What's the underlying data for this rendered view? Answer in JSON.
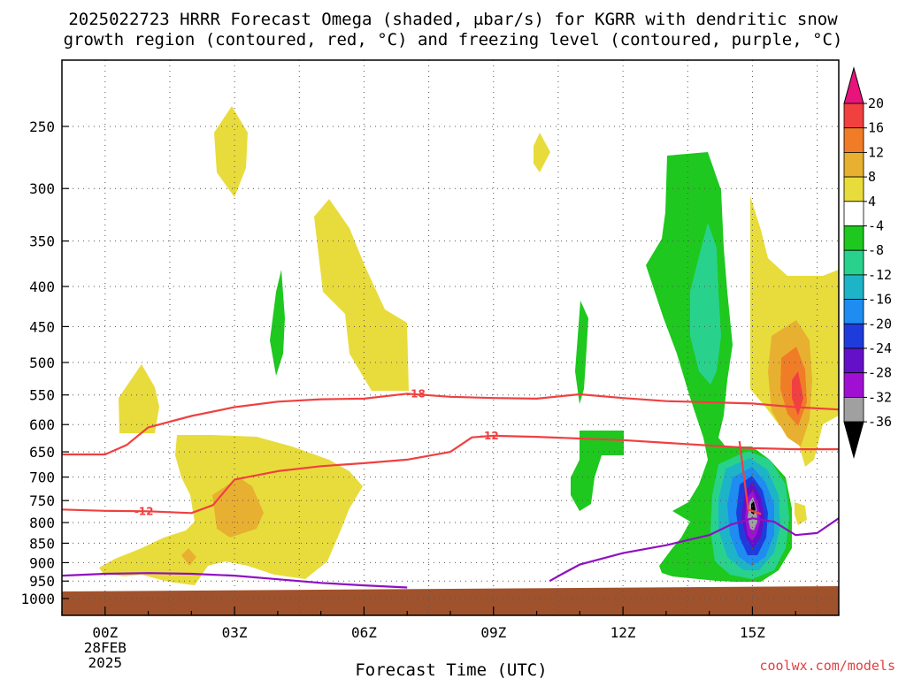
{
  "title": {
    "line1": "2025022723 HRRR Forecast Omega (shaded, μbar/s) for KGRR with dendritic snow",
    "line2": "growth region (contoured, red, °C) and freezing level (contoured, purple, °C)"
  },
  "credit": "coolwx.com/models",
  "colors": {
    "ground": "#a0522d",
    "dgz_contour": "#f04040",
    "freezing_contour": "#9010c0"
  },
  "chart_data": {
    "type": "time-height contour",
    "xlabel": "Forecast Time (UTC)",
    "ylabel": "",
    "x_ticks": [
      "00Z",
      "03Z",
      "06Z",
      "09Z",
      "12Z",
      "15Z"
    ],
    "x_tick_hours": [
      0,
      3,
      6,
      9,
      12,
      15
    ],
    "x_subtick": {
      "hour": 0,
      "lines": [
        "28FEB",
        "2025"
      ]
    },
    "xlim_hours": [
      -1,
      17
    ],
    "y_ticks": [
      "250",
      "300",
      "350",
      "400",
      "450",
      "500",
      "550",
      "600",
      "650",
      "700",
      "750",
      "800",
      "850",
      "900",
      "950",
      "1000"
    ],
    "y_tick_values": [
      250,
      300,
      350,
      400,
      450,
      500,
      550,
      600,
      650,
      700,
      750,
      800,
      850,
      900,
      950,
      1000
    ],
    "y_unit": "hPa",
    "ylim_hpa": [
      1025,
      200
    ],
    "y_scale": "log-pressure",
    "grid": true,
    "colorbar": {
      "labels": [
        "20",
        "16",
        "12",
        "8",
        "4",
        "-4",
        "-8",
        "-12",
        "-16",
        "-20",
        "-24",
        "-28",
        "-32",
        "-36"
      ],
      "colors": [
        "#e8147c",
        "#f04040",
        "#f07c28",
        "#e8b030",
        "#e8dc3c",
        "#ffffff",
        "#1ec81e",
        "#28d28c",
        "#1eb4c8",
        "#1e8cf0",
        "#1e3cdc",
        "#6410c8",
        "#a010d2",
        "#a0a0a0",
        "#000000"
      ],
      "placement": "right"
    },
    "contours": [
      {
        "label": "-18",
        "color": "#f04040",
        "points": [
          [
            -1,
            655
          ],
          [
            0,
            655
          ],
          [
            0.5,
            637
          ],
          [
            1,
            605
          ],
          [
            2,
            585
          ],
          [
            3,
            570
          ],
          [
            4,
            561
          ],
          [
            5,
            557
          ],
          [
            6,
            556
          ],
          [
            7,
            548
          ],
          [
            8,
            553
          ],
          [
            9,
            555
          ],
          [
            10,
            556
          ],
          [
            11,
            549
          ],
          [
            12,
            555
          ],
          [
            13,
            560
          ],
          [
            14,
            562
          ],
          [
            15,
            564
          ],
          [
            16,
            570
          ],
          [
            17,
            574
          ]
        ]
      },
      {
        "label": "-12",
        "color": "#f04040",
        "points": [
          [
            -1,
            770
          ],
          [
            0,
            773
          ],
          [
            1,
            774
          ],
          [
            2,
            778
          ],
          [
            2.5,
            760
          ],
          [
            3,
            705
          ],
          [
            4,
            688
          ],
          [
            5,
            678
          ],
          [
            6,
            672
          ],
          [
            7,
            665
          ],
          [
            8,
            650
          ],
          [
            8.5,
            623
          ],
          [
            9,
            620
          ],
          [
            10,
            622
          ],
          [
            11,
            625
          ],
          [
            12,
            628
          ],
          [
            13,
            633
          ],
          [
            14,
            638
          ],
          [
            15,
            643
          ],
          [
            16,
            645
          ],
          [
            17,
            645
          ]
        ]
      },
      {
        "label": "-12",
        "color": "#f04040",
        "points": [
          [
            14.7,
            630
          ],
          [
            14.9,
            770
          ],
          [
            15.2,
            780
          ]
        ]
      },
      {
        "label": "0",
        "color": "#9010c0",
        "points": [
          [
            -1,
            935
          ],
          [
            0,
            930
          ],
          [
            1,
            928
          ],
          [
            2,
            930
          ],
          [
            3,
            935
          ],
          [
            4,
            945
          ],
          [
            5,
            955
          ],
          [
            6,
            962
          ],
          [
            7,
            968
          ]
        ]
      },
      {
        "label": "0",
        "color": "#9010c0",
        "points": [
          [
            10.3,
            950
          ],
          [
            10.6,
            930
          ],
          [
            11,
            905
          ],
          [
            12,
            875
          ],
          [
            13,
            855
          ],
          [
            14,
            830
          ],
          [
            14.5,
            805
          ],
          [
            15,
            790
          ],
          [
            15.5,
            798
          ],
          [
            16,
            830
          ],
          [
            16.5,
            825
          ],
          [
            17,
            790
          ]
        ]
      }
    ],
    "shaded_regions": [
      {
        "level": "4",
        "color": "#e8dc3c"
      },
      {
        "level": "8",
        "color": "#e8b030"
      },
      {
        "level": "12",
        "color": "#f07c28"
      },
      {
        "level": "16",
        "color": "#f04040"
      },
      {
        "level": "-4",
        "color": "#1ec81e"
      },
      {
        "level": "-8",
        "color": "#28d28c"
      },
      {
        "level": "-12",
        "color": "#1eb4c8"
      },
      {
        "level": "-16",
        "color": "#1e8cf0"
      },
      {
        "level": "-20",
        "color": "#1e3cdc"
      },
      {
        "level": "-24",
        "color": "#6410c8"
      },
      {
        "level": "-28",
        "color": "#a010d2"
      },
      {
        "level": "-32",
        "color": "#a0a0a0"
      },
      {
        "level": "-36",
        "color": "#000000"
      }
    ]
  }
}
